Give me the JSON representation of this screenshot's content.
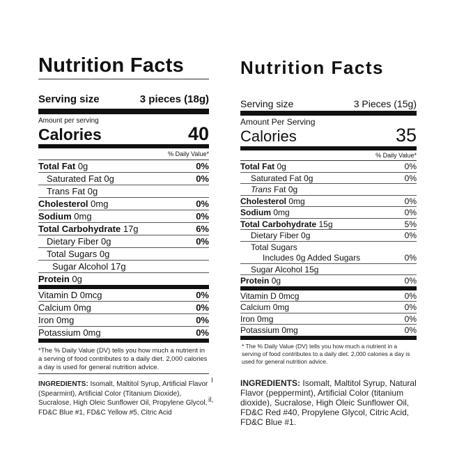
{
  "left": {
    "title": "Nutrition Facts",
    "serving_label": "Serving size",
    "serving_value": "3 pieces (18g)",
    "amount_per_serving": "Amount per serving",
    "calories_label": "Calories",
    "calories_value": "40",
    "dv_header": "% Daily Value*",
    "rows": [
      {
        "name": "Total Fat",
        "amount": "0g",
        "dv": "0%",
        "bold": true,
        "indent": 0
      },
      {
        "name": "Saturated Fat",
        "amount": "0g",
        "dv": "0%",
        "indent": 1
      },
      {
        "name": "Trans Fat",
        "amount": "0g",
        "dv": "",
        "indent": 1
      },
      {
        "name": "Cholesterol",
        "amount": "0mg",
        "dv": "0%",
        "bold": true,
        "indent": 0
      },
      {
        "name": "Sodium",
        "amount": "0mg",
        "dv": "0%",
        "bold": true,
        "indent": 0
      },
      {
        "name": "Total Carbohydrate",
        "amount": "17g",
        "dv": "6%",
        "bold": true,
        "indent": 0
      },
      {
        "name": "Dietary Fiber",
        "amount": "0g",
        "dv": "0%",
        "indent": 1
      },
      {
        "name": "Total Sugars",
        "amount": "0g",
        "dv": "",
        "indent": 1
      },
      {
        "name": "Sugar Alcohol",
        "amount": "17g",
        "dv": "",
        "indent": 2
      },
      {
        "name": "Protein",
        "amount": "0g",
        "dv": "",
        "bold": true,
        "indent": 0,
        "thick": true
      },
      {
        "name": "Vitamin D",
        "amount": "0mcg",
        "dv": "0%",
        "indent": 0
      },
      {
        "name": "Calcium",
        "amount": "0mg",
        "dv": "0%",
        "indent": 0
      },
      {
        "name": "Iron",
        "amount": "0mg",
        "dv": "0%",
        "indent": 0
      },
      {
        "name": "Potassium",
        "amount": "0mg",
        "dv": "0%",
        "indent": 0,
        "thick": true
      }
    ],
    "footnote": "*The % Daily Value (DV) tells you how much a nutrient in a serving of food contributes to a daily diet. 2,000 calories a day is used for general nutrition advice.",
    "ingredients_label": "INGREDIENTS:",
    "ingredients": "Isomalt, Maltitol Syrup, Artificial Flavor (Spearmint), Artificial Color (Titanium Dioxide), Sucralose, High Oleic Sunflower Oil, Propylene Glycol, FD&C Blue #1, FD&C Yellow #5, Citric Acid",
    "stray_marks": [
      "I",
      "il,"
    ]
  },
  "right": {
    "title": "Nutrition Facts",
    "serving_label": "Serving size",
    "serving_value": "3 Pieces (15g)",
    "amount_per_serving": "Amount Per Serving",
    "calories_label": "Calories",
    "calories_value": "35",
    "dv_header": "% Daily Value*",
    "rows": [
      {
        "name": "Total Fat",
        "amount": "0g",
        "dv": "0%",
        "bold": true,
        "indent": 0
      },
      {
        "name": "Saturated Fat",
        "amount": "0g",
        "dv": "0%",
        "indent": 1
      },
      {
        "name": "Trans",
        "suffix": "Fat",
        "amount": "0g",
        "dv": "",
        "indent": 1,
        "italic": true
      },
      {
        "name": "Cholesterol",
        "amount": "0mg",
        "dv": "0%",
        "bold": true,
        "indent": 0
      },
      {
        "name": "Sodium",
        "amount": "0mg",
        "dv": "0%",
        "bold": true,
        "indent": 0
      },
      {
        "name": "Total Carbohydrate",
        "amount": "15g",
        "dv": "5%",
        "bold": true,
        "indent": 0
      },
      {
        "name": "Dietary Fiber",
        "amount": "0g",
        "dv": "0%",
        "indent": 1
      },
      {
        "name": "Total Sugars",
        "amount": "",
        "dv": "",
        "indent": 1,
        "none": true
      },
      {
        "name": "Includes 0g Added Sugars",
        "amount": "",
        "dv": "0%",
        "indent": 2
      },
      {
        "name": "Sugar Alcohol",
        "amount": "15g",
        "dv": "",
        "indent": 1
      },
      {
        "name": "Protein",
        "amount": "0g",
        "dv": "0%",
        "bold": true,
        "indent": 0,
        "thick": true
      },
      {
        "name": "Vitamin D",
        "amount": "0mcg",
        "dv": "0%",
        "indent": 0
      },
      {
        "name": "Calcium",
        "amount": "0mg",
        "dv": "0%",
        "indent": 0
      },
      {
        "name": "Iron",
        "amount": "0mg",
        "dv": "0%",
        "indent": 0
      },
      {
        "name": "Potassium",
        "amount": "0mg",
        "dv": "0%",
        "indent": 0,
        "thick": true
      }
    ],
    "footnote": "* The % Daily Value (DV) tells you how much a nutrient in a serving of food contributes to a daily diet. 2,000 calories a day is used for general nutrition advice.",
    "ingredients_label": "INGREDIENTS:",
    "ingredients": "Isomalt, Maltitol Syrup, Natural Flavor (peppermint), Artificial Color (titanium dioxide), Sucralose, High Oleic Sunflower Oil, FD&C Red #40, Propylene Glycol, Citric Acid, FD&C Blue #1."
  }
}
